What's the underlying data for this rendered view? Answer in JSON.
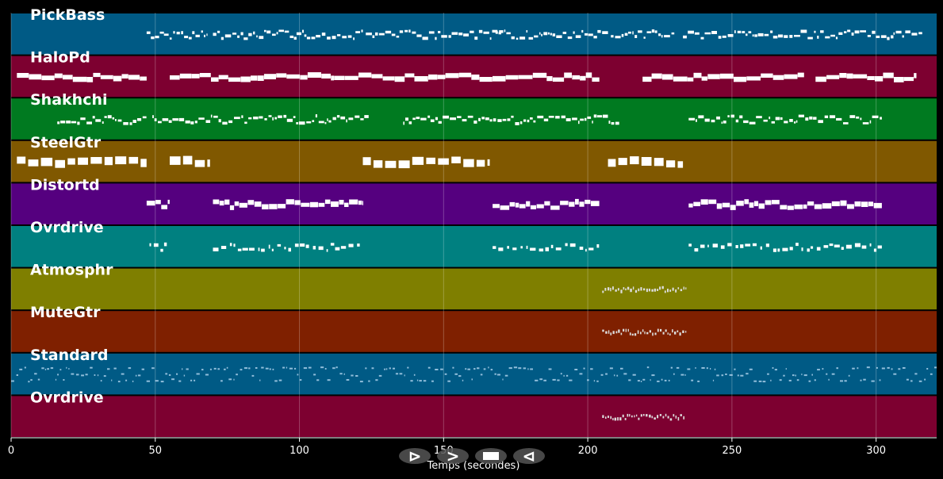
{
  "chart_data": {
    "type": "piano-roll",
    "xlabel": "Temps (secondes)",
    "xlim": [
      0,
      321
    ],
    "xticks": [
      0,
      50,
      100,
      150,
      200,
      250,
      300
    ],
    "grid": true,
    "tracks": [
      {
        "name": "PickBass",
        "color": "#005a85",
        "style": "thin",
        "phrases": [
          [
            47,
            53
          ],
          [
            53,
            68
          ],
          [
            70,
            99
          ],
          [
            99,
            122
          ],
          [
            123,
            170
          ],
          [
            168,
            207
          ],
          [
            208,
            230
          ],
          [
            233,
            266
          ],
          [
            266,
            306
          ],
          [
            306,
            316
          ]
        ]
      },
      {
        "name": "HaloPd",
        "color": "#7d0030",
        "style": "long",
        "phrases": [
          [
            2,
            47
          ],
          [
            55,
            112
          ],
          [
            112,
            204
          ],
          [
            219,
            275
          ],
          [
            279,
            314
          ]
        ]
      },
      {
        "name": "Shakhchi",
        "color": "#007a20",
        "style": "thin",
        "phrases": [
          [
            16,
            47
          ],
          [
            49,
            124
          ],
          [
            136,
            211
          ],
          [
            235,
            302
          ]
        ]
      },
      {
        "name": "SteelGtr",
        "color": "#805800",
        "style": "chunky",
        "phrases": [
          [
            2,
            47
          ],
          [
            55,
            69
          ],
          [
            122,
            166
          ],
          [
            207,
            233
          ]
        ]
      },
      {
        "name": "Distortd",
        "color": "#55007f",
        "style": "medium",
        "phrases": [
          [
            47,
            55
          ],
          [
            70,
            122
          ],
          [
            167,
            204
          ],
          [
            235,
            302
          ]
        ]
      },
      {
        "name": "Ovrdrive",
        "color": "#008080",
        "style": "sparse",
        "phrases": [
          [
            48,
            54
          ],
          [
            70,
            122
          ],
          [
            167,
            204
          ],
          [
            235,
            302
          ]
        ]
      },
      {
        "name": "Atmosphr",
        "color": "#7f7f00",
        "style": "tiny",
        "phrases": [
          [
            205,
            234
          ]
        ]
      },
      {
        "name": "MuteGtr",
        "color": "#7f2000",
        "style": "tiny",
        "phrases": [
          [
            205,
            234
          ]
        ]
      },
      {
        "name": "Standard",
        "color": "#005a85",
        "style": "dense",
        "phrases": [
          [
            0,
            321
          ]
        ]
      },
      {
        "name": "Ovrdrive",
        "color": "#7d0030",
        "style": "tiny",
        "phrases": [
          [
            205,
            234
          ]
        ]
      }
    ]
  },
  "controls": [
    {
      "name": "play-icon",
      "glyph": "⊳"
    },
    {
      "name": "fast-forward-icon",
      "glyph": ">"
    },
    {
      "name": "stop-icon",
      "glyph": ""
    },
    {
      "name": "rewind-icon",
      "glyph": "⊲"
    }
  ]
}
